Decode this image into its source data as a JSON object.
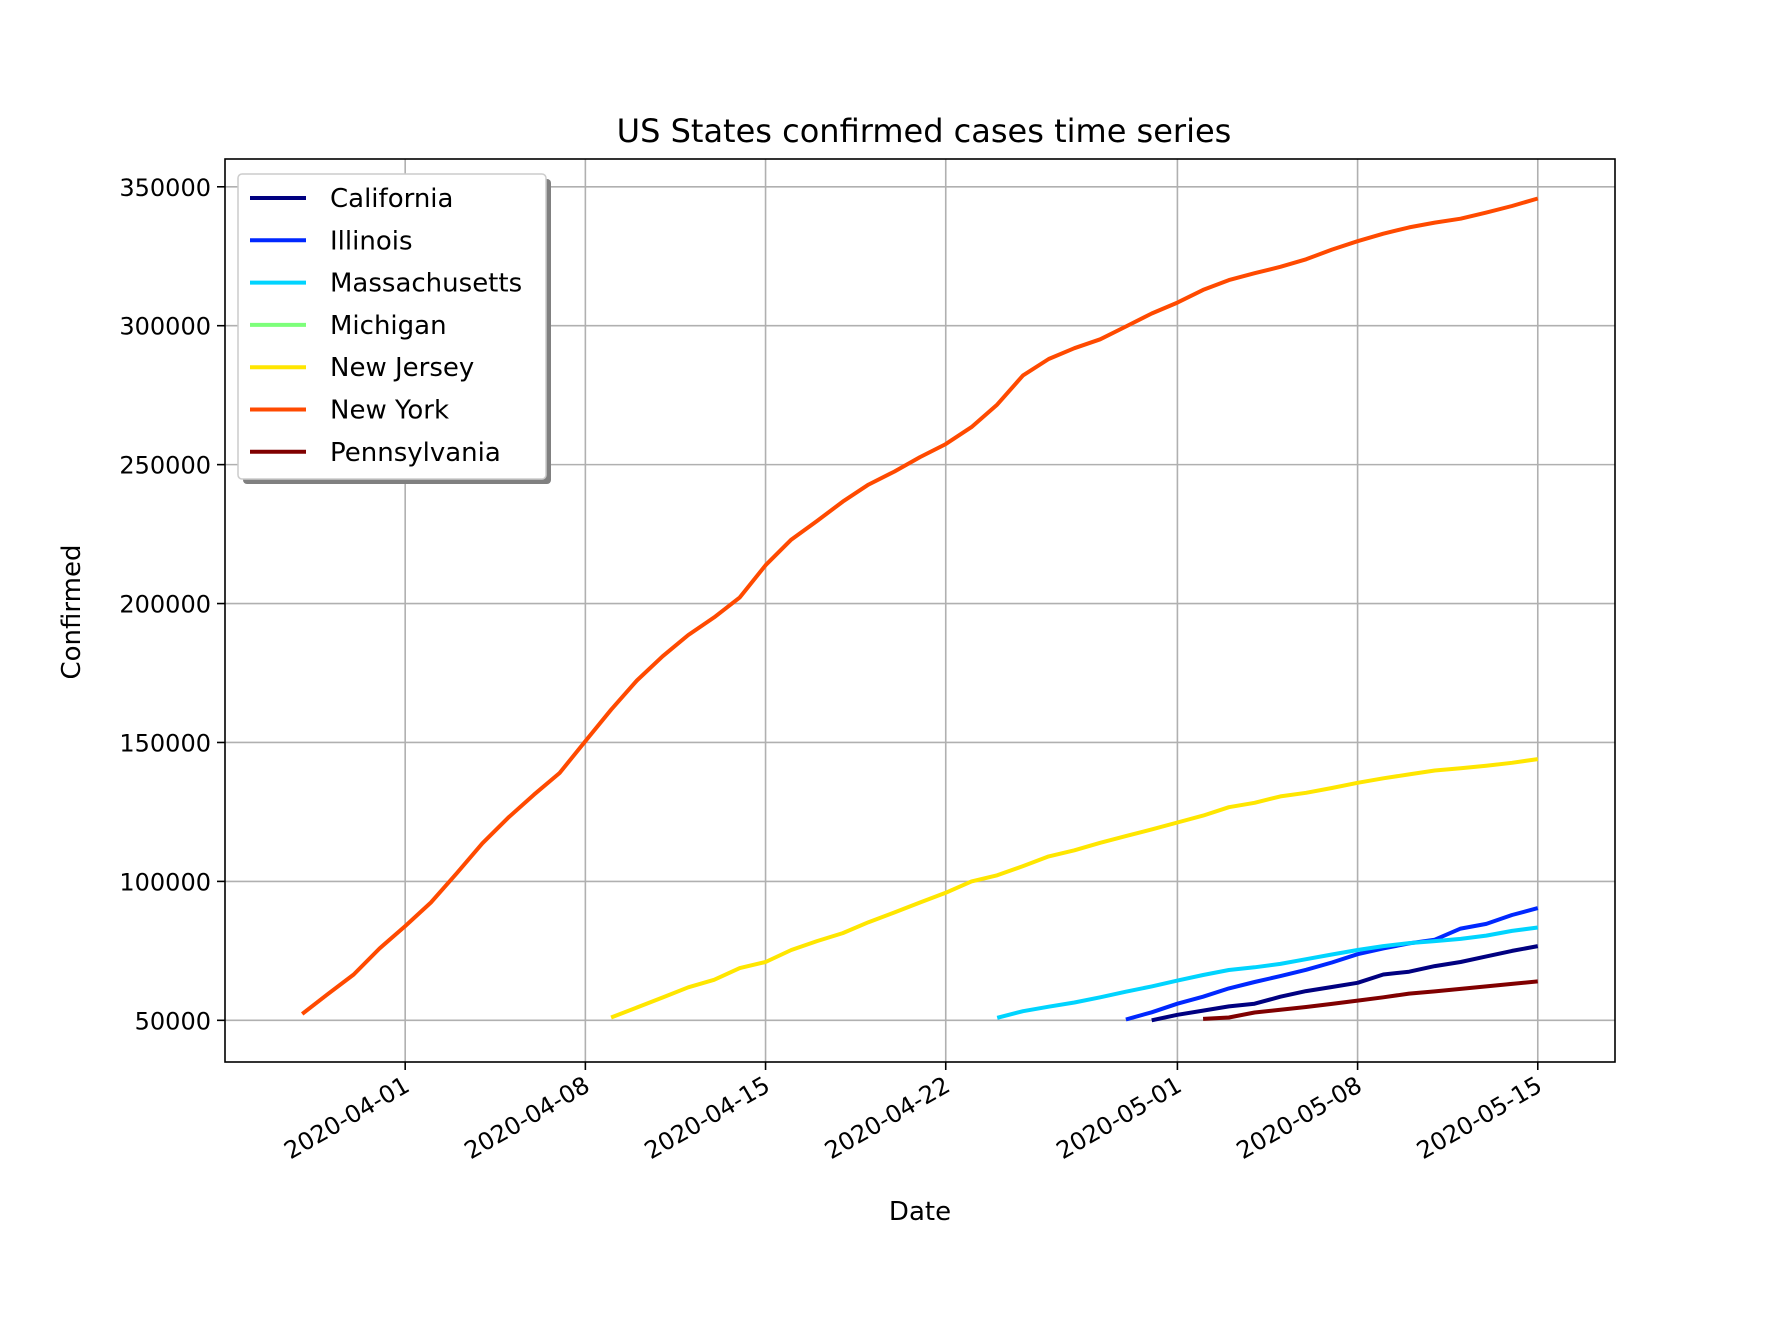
{
  "chart_data": {
    "type": "line",
    "title": "US States confirmed cases time series",
    "xlabel": "Date",
    "ylabel": "Confirmed",
    "x_range": [
      "2020-03-25",
      "2020-05-18"
    ],
    "ylim": [
      35000,
      360000
    ],
    "grid": true,
    "legend_position": "top-left",
    "x_ticks": [
      "2020-04-01",
      "2020-04-08",
      "2020-04-15",
      "2020-04-22",
      "2020-05-01",
      "2020-05-08",
      "2020-05-15"
    ],
    "y_ticks": [
      50000,
      100000,
      150000,
      200000,
      250000,
      300000,
      350000
    ],
    "series": [
      {
        "name": "California",
        "color": "#000080",
        "points": [
          [
            "2020-04-30",
            50000
          ],
          [
            "2020-05-01",
            52000
          ],
          [
            "2020-05-02",
            53500
          ],
          [
            "2020-05-03",
            55000
          ],
          [
            "2020-05-04",
            56000
          ],
          [
            "2020-05-05",
            58500
          ],
          [
            "2020-05-06",
            60500
          ],
          [
            "2020-05-07",
            62000
          ],
          [
            "2020-05-08",
            63500
          ],
          [
            "2020-05-09",
            66500
          ],
          [
            "2020-05-10",
            67500
          ],
          [
            "2020-05-11",
            69500
          ],
          [
            "2020-05-12",
            71000
          ],
          [
            "2020-05-13",
            73000
          ],
          [
            "2020-05-14",
            75000
          ],
          [
            "2020-05-15",
            76700
          ]
        ]
      },
      {
        "name": "Illinois",
        "color": "#0028ff",
        "points": [
          [
            "2020-04-29",
            50300
          ],
          [
            "2020-04-30",
            52900
          ],
          [
            "2020-05-01",
            56000
          ],
          [
            "2020-05-02",
            58500
          ],
          [
            "2020-05-03",
            61500
          ],
          [
            "2020-05-04",
            63800
          ],
          [
            "2020-05-05",
            65900
          ],
          [
            "2020-05-06",
            68200
          ],
          [
            "2020-05-07",
            70800
          ],
          [
            "2020-05-08",
            73800
          ],
          [
            "2020-05-09",
            75900
          ],
          [
            "2020-05-10",
            77700
          ],
          [
            "2020-05-11",
            79000
          ],
          [
            "2020-05-12",
            83000
          ],
          [
            "2020-05-13",
            84700
          ],
          [
            "2020-05-14",
            87900
          ],
          [
            "2020-05-15",
            90400
          ]
        ]
      },
      {
        "name": "Massachusetts",
        "color": "#00d4ff",
        "points": [
          [
            "2020-04-24",
            50900
          ],
          [
            "2020-04-25",
            53300
          ],
          [
            "2020-04-26",
            54900
          ],
          [
            "2020-04-27",
            56400
          ],
          [
            "2020-04-28",
            58300
          ],
          [
            "2020-04-29",
            60300
          ],
          [
            "2020-04-30",
            62200
          ],
          [
            "2020-05-01",
            64300
          ],
          [
            "2020-05-02",
            66300
          ],
          [
            "2020-05-03",
            68100
          ],
          [
            "2020-05-04",
            69100
          ],
          [
            "2020-05-05",
            70300
          ],
          [
            "2020-05-06",
            72000
          ],
          [
            "2020-05-07",
            73700
          ],
          [
            "2020-05-08",
            75300
          ],
          [
            "2020-05-09",
            76700
          ],
          [
            "2020-05-10",
            77800
          ],
          [
            "2020-05-11",
            78500
          ],
          [
            "2020-05-12",
            79300
          ],
          [
            "2020-05-13",
            80500
          ],
          [
            "2020-05-14",
            82200
          ],
          [
            "2020-05-15",
            83400
          ]
        ]
      },
      {
        "name": "Michigan",
        "color": "#7dff7a",
        "points": []
      },
      {
        "name": "New Jersey",
        "color": "#ffe600",
        "points": [
          [
            "2020-04-09",
            51000
          ],
          [
            "2020-04-10",
            54600
          ],
          [
            "2020-04-11",
            58200
          ],
          [
            "2020-04-12",
            61900
          ],
          [
            "2020-04-13",
            64600
          ],
          [
            "2020-04-14",
            68800
          ],
          [
            "2020-04-15",
            71000
          ],
          [
            "2020-04-16",
            75300
          ],
          [
            "2020-04-17",
            78500
          ],
          [
            "2020-04-18",
            81400
          ],
          [
            "2020-04-19",
            85300
          ],
          [
            "2020-04-20",
            88800
          ],
          [
            "2020-04-21",
            92400
          ],
          [
            "2020-04-22",
            95900
          ],
          [
            "2020-04-23",
            100000
          ],
          [
            "2020-04-24",
            102200
          ],
          [
            "2020-04-25",
            105500
          ],
          [
            "2020-04-26",
            109000
          ],
          [
            "2020-04-27",
            111200
          ],
          [
            "2020-04-28",
            113900
          ],
          [
            "2020-04-29",
            116300
          ],
          [
            "2020-04-30",
            118700
          ],
          [
            "2020-05-01",
            121200
          ],
          [
            "2020-05-02",
            123700
          ],
          [
            "2020-05-03",
            126700
          ],
          [
            "2020-05-04",
            128300
          ],
          [
            "2020-05-05",
            130600
          ],
          [
            "2020-05-06",
            131900
          ],
          [
            "2020-05-07",
            133600
          ],
          [
            "2020-05-08",
            135500
          ],
          [
            "2020-05-09",
            137100
          ],
          [
            "2020-05-10",
            138500
          ],
          [
            "2020-05-11",
            139900
          ],
          [
            "2020-05-12",
            140700
          ],
          [
            "2020-05-13",
            141600
          ],
          [
            "2020-05-14",
            142700
          ],
          [
            "2020-05-15",
            144000
          ]
        ]
      },
      {
        "name": "New York",
        "color": "#ff4a00",
        "points": [
          [
            "2020-03-28",
            52300
          ],
          [
            "2020-03-29",
            59500
          ],
          [
            "2020-03-30",
            66500
          ],
          [
            "2020-03-31",
            75800
          ],
          [
            "2020-04-01",
            83900
          ],
          [
            "2020-04-02",
            92400
          ],
          [
            "2020-04-03",
            102900
          ],
          [
            "2020-04-04",
            113700
          ],
          [
            "2020-04-05",
            122900
          ],
          [
            "2020-04-06",
            131200
          ],
          [
            "2020-04-07",
            139000
          ],
          [
            "2020-04-08",
            150500
          ],
          [
            "2020-04-09",
            161800
          ],
          [
            "2020-04-10",
            172300
          ],
          [
            "2020-04-11",
            181000
          ],
          [
            "2020-04-12",
            188700
          ],
          [
            "2020-04-13",
            195000
          ],
          [
            "2020-04-14",
            202200
          ],
          [
            "2020-04-15",
            213800
          ],
          [
            "2020-04-16",
            223000
          ],
          [
            "2020-04-17",
            229700
          ],
          [
            "2020-04-18",
            236700
          ],
          [
            "2020-04-19",
            242800
          ],
          [
            "2020-04-20",
            247500
          ],
          [
            "2020-04-21",
            252700
          ],
          [
            "2020-04-22",
            257400
          ],
          [
            "2020-04-23",
            263500
          ],
          [
            "2020-04-24",
            271600
          ],
          [
            "2020-04-25",
            282100
          ],
          [
            "2020-04-26",
            288000
          ],
          [
            "2020-04-27",
            291900
          ],
          [
            "2020-04-28",
            295100
          ],
          [
            "2020-04-29",
            299700
          ],
          [
            "2020-04-30",
            304400
          ],
          [
            "2020-05-01",
            308300
          ],
          [
            "2020-05-02",
            312900
          ],
          [
            "2020-05-03",
            316400
          ],
          [
            "2020-05-04",
            318900
          ],
          [
            "2020-05-05",
            321200
          ],
          [
            "2020-05-06",
            323900
          ],
          [
            "2020-05-07",
            327400
          ],
          [
            "2020-05-08",
            330400
          ],
          [
            "2020-05-09",
            333100
          ],
          [
            "2020-05-10",
            335400
          ],
          [
            "2020-05-11",
            337100
          ],
          [
            "2020-05-12",
            338500
          ],
          [
            "2020-05-13",
            340700
          ],
          [
            "2020-05-14",
            343100
          ],
          [
            "2020-05-15",
            345800
          ]
        ]
      },
      {
        "name": "Pennsylvania",
        "color": "#800000",
        "points": [
          [
            "2020-05-02",
            50500
          ],
          [
            "2020-05-03",
            51000
          ],
          [
            "2020-05-04",
            52800
          ],
          [
            "2020-05-05",
            53800
          ],
          [
            "2020-05-06",
            54800
          ],
          [
            "2020-05-07",
            55900
          ],
          [
            "2020-05-08",
            57100
          ],
          [
            "2020-05-09",
            58300
          ],
          [
            "2020-05-10",
            59600
          ],
          [
            "2020-05-11",
            60400
          ],
          [
            "2020-05-12",
            61300
          ],
          [
            "2020-05-13",
            62200
          ],
          [
            "2020-05-14",
            63100
          ],
          [
            "2020-05-15",
            64000
          ]
        ]
      }
    ]
  }
}
